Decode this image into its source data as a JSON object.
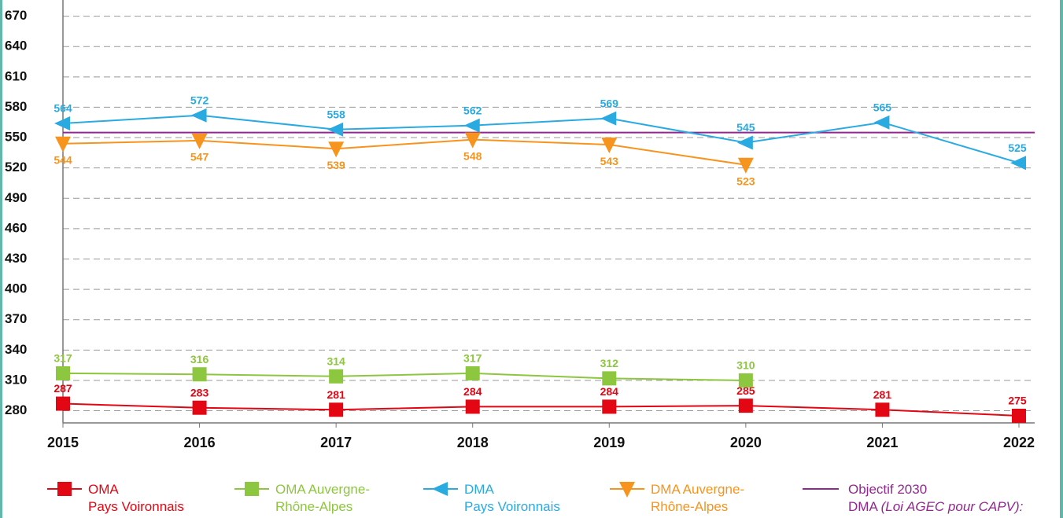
{
  "chart_data": {
    "type": "line",
    "categories": [
      "2015",
      "2016",
      "2017",
      "2018",
      "2019",
      "2020",
      "2021",
      "2022"
    ],
    "ylim": [
      268,
      686
    ],
    "yticks": [
      280,
      310,
      340,
      370,
      400,
      430,
      460,
      490,
      520,
      550,
      580,
      610,
      640,
      670
    ],
    "grid": true,
    "series": [
      {
        "name": "OMA\nPays Voironnais",
        "color": "#e30613",
        "marker": "square",
        "label_pos": "above",
        "values": [
          287,
          283,
          281,
          284,
          284,
          285,
          281,
          275
        ]
      },
      {
        "name": "OMA Auvergne-\nRhône-Alpes",
        "color": "#8dc63f",
        "marker": "square",
        "label_pos": "above",
        "values": [
          317,
          316,
          314,
          317,
          312,
          310,
          null,
          null
        ]
      },
      {
        "name": "DMA\nPays Voironnais",
        "color": "#29abe2",
        "marker": "triangle-left",
        "label_pos": "above",
        "values": [
          564,
          572,
          558,
          562,
          569,
          545,
          565,
          525
        ]
      },
      {
        "name": "DMA Auvergne-\nRhône-Alpes",
        "color": "#f7941d",
        "marker": "triangle-down",
        "label_pos": "below",
        "values": [
          544,
          547,
          539,
          548,
          543,
          523,
          null,
          null
        ]
      }
    ],
    "target": {
      "name": "Objectif 2030\nDMA",
      "note": "(Loi AGEC pour CAPV):",
      "color": "#92278f",
      "value": 555
    }
  }
}
